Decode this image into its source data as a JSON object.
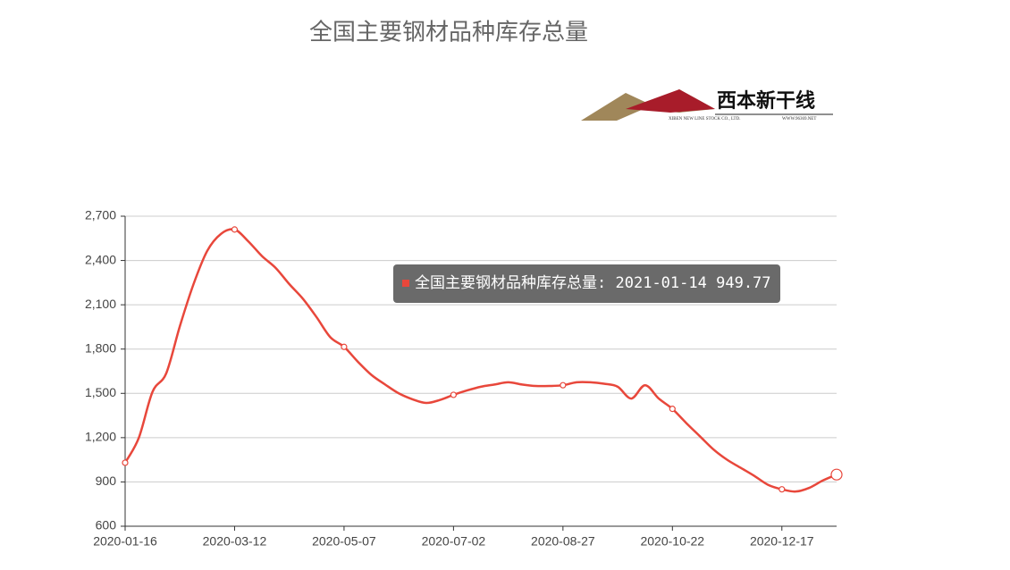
{
  "chart_data": {
    "type": "line",
    "title": "全国主要钢材品种库存总量",
    "logo": {
      "name": "西本新干线",
      "company": "XIBEN NEW LINE STOCK CO., LTD.",
      "site": "WWW.96369.NET"
    },
    "x": [
      "2020-01-16",
      "2020-01-23",
      "2020-01-30",
      "2020-02-06",
      "2020-02-13",
      "2020-02-20",
      "2020-02-27",
      "2020-03-05",
      "2020-03-12",
      "2020-03-19",
      "2020-03-26",
      "2020-04-02",
      "2020-04-09",
      "2020-04-16",
      "2020-04-23",
      "2020-04-30",
      "2020-05-07",
      "2020-05-14",
      "2020-05-21",
      "2020-05-28",
      "2020-06-04",
      "2020-06-11",
      "2020-06-18",
      "2020-06-25",
      "2020-07-02",
      "2020-07-09",
      "2020-07-16",
      "2020-07-23",
      "2020-07-30",
      "2020-08-06",
      "2020-08-13",
      "2020-08-20",
      "2020-08-27",
      "2020-09-03",
      "2020-09-10",
      "2020-09-17",
      "2020-09-24",
      "2020-10-01",
      "2020-10-08",
      "2020-10-15",
      "2020-10-22",
      "2020-10-29",
      "2020-11-05",
      "2020-11-12",
      "2020-11-19",
      "2020-11-26",
      "2020-12-03",
      "2020-12-10",
      "2020-12-17",
      "2020-12-24",
      "2020-12-31",
      "2021-01-07",
      "2021-01-14"
    ],
    "xtick_every": 8,
    "series": [
      {
        "name": "全国主要钢材品种库存总量",
        "color": "#e8473b",
        "values": [
          1030,
          1199,
          1510,
          1635,
          1955,
          2240,
          2465,
          2580,
          2610,
          2530,
          2430,
          2350,
          2240,
          2140,
          2015,
          1880,
          1815,
          1715,
          1625,
          1560,
          1500,
          1460,
          1435,
          1455,
          1490,
          1520,
          1545,
          1560,
          1575,
          1560,
          1550,
          1550,
          1555,
          1575,
          1575,
          1565,
          1545,
          1465,
          1555,
          1465,
          1395,
          1300,
          1210,
          1120,
          1050,
          995,
          940,
          880,
          850,
          835,
          860,
          910,
          949.77
        ]
      }
    ],
    "ylim": [
      600,
      2700
    ],
    "yticks": [
      600,
      900,
      {
        "value": 1200,
        "label": "1,200"
      },
      {
        "value": 1500,
        "label": "1,500"
      },
      {
        "value": 1800,
        "label": "1,800"
      },
      {
        "value": 2100,
        "label": "2,100"
      },
      {
        "value": 2400,
        "label": "2,400"
      },
      {
        "value": 2700,
        "label": "2,700"
      }
    ],
    "grid": true,
    "tooltip_separator": ":"
  }
}
